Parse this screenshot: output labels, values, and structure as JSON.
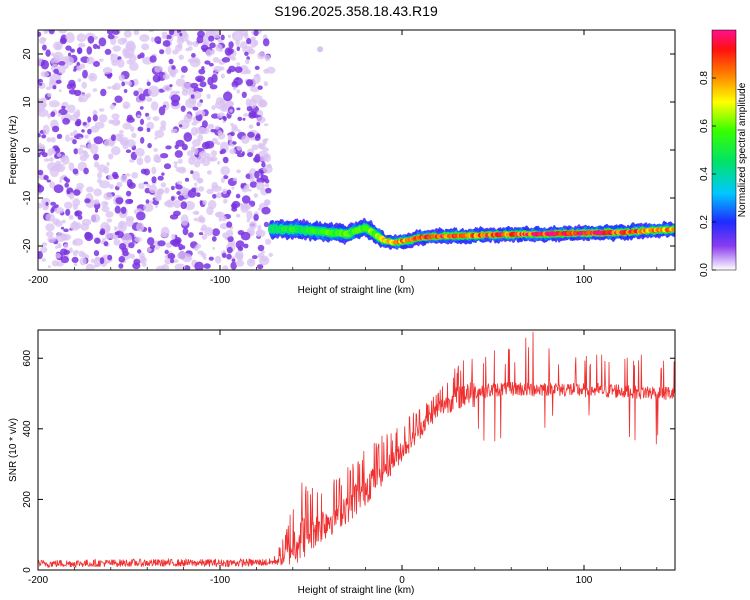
{
  "title": "S196.2025.358.18.43.R19",
  "colors": {
    "noise_light": "#d9c2f2",
    "noise_dark": "#7a33e0",
    "snr_line": "#f03030",
    "frame": "#000000"
  },
  "chart_data": [
    {
      "type": "heatmap",
      "name": "spectrogram",
      "title": "S196.2025.358.18.43.R19",
      "xlabel": "Height of straight line (km)",
      "ylabel": "Frequency (Hz)",
      "xlim": [
        -200,
        150
      ],
      "ylim": [
        -25,
        25
      ],
      "xticks": [
        -200,
        -100,
        0,
        100
      ],
      "xtick_labels": [
        "-200",
        "-100",
        "0",
        "100"
      ],
      "yticks": [
        -20,
        -10,
        0,
        10,
        20
      ],
      "ytick_labels": [
        "-20",
        "-10",
        "0",
        "10",
        "20"
      ],
      "colorbar": {
        "label": "Normalized spectral amplitude",
        "range": [
          0,
          1
        ],
        "ticks": [
          0.0,
          0.2,
          0.4,
          0.6,
          0.8
        ],
        "tick_labels": [
          "0.0",
          "0.2",
          "0.4",
          "0.6",
          "0.8"
        ]
      },
      "noise_region_x": [
        -200,
        -72
      ],
      "tone_track": {
        "x": [
          -72,
          -60,
          -50,
          -40,
          -30,
          -25,
          -20,
          -15,
          -10,
          -5,
          0,
          5,
          10,
          20,
          40,
          60,
          80,
          100,
          120,
          135,
          150
        ],
        "y": [
          -16.5,
          -16.5,
          -16.8,
          -17.2,
          -17.5,
          -16.8,
          -16.2,
          -17.5,
          -18.8,
          -19.3,
          -19.0,
          -18.7,
          -18.2,
          -18.0,
          -17.8,
          -17.6,
          -17.5,
          -17.3,
          -17.2,
          -16.8,
          -16.5
        ],
        "amplitude": [
          0.45,
          0.5,
          0.5,
          0.55,
          0.55,
          0.6,
          0.55,
          0.6,
          0.7,
          0.75,
          0.8,
          0.8,
          0.85,
          0.9,
          0.85,
          0.85,
          0.9,
          0.95,
          0.9,
          0.8,
          0.75
        ]
      }
    },
    {
      "type": "line",
      "name": "snr",
      "xlabel": "Height of straight line (km)",
      "ylabel": "SNR (10 * v/v)",
      "xlim": [
        -200,
        150
      ],
      "ylim": [
        0,
        680
      ],
      "xticks": [
        -200,
        -100,
        0,
        100
      ],
      "xtick_labels": [
        "-200",
        "-100",
        "0",
        "100"
      ],
      "yticks": [
        0,
        200,
        400,
        600
      ],
      "ytick_labels": [
        "0",
        "200",
        "400",
        "600"
      ],
      "series": [
        {
          "name": "SNR",
          "x": [
            -200,
            -150,
            -100,
            -70,
            -65,
            -60,
            -55,
            -50,
            -45,
            -40,
            -35,
            -30,
            -25,
            -20,
            -15,
            -10,
            -5,
            0,
            5,
            10,
            15,
            20,
            25,
            30,
            35,
            40,
            50,
            60,
            70,
            80,
            90,
            100,
            110,
            120,
            130,
            140,
            150
          ],
          "baseline": [
            18,
            20,
            20,
            22,
            35,
            70,
            95,
            110,
            125,
            140,
            160,
            180,
            205,
            230,
            260,
            285,
            310,
            340,
            370,
            400,
            430,
            455,
            475,
            490,
            500,
            505,
            510,
            515,
            512,
            515,
            512,
            510,
            510,
            508,
            505,
            502,
            500
          ],
          "spike_amplitude": [
            15,
            15,
            15,
            20,
            60,
            150,
            170,
            140,
            130,
            120,
            110,
            120,
            130,
            120,
            110,
            100,
            90,
            80,
            80,
            70,
            60,
            70,
            80,
            90,
            110,
            120,
            110,
            110,
            150,
            100,
            80,
            80,
            90,
            100,
            120,
            110,
            100
          ],
          "peak": {
            "x": 72,
            "y": 675
          }
        }
      ]
    }
  ]
}
